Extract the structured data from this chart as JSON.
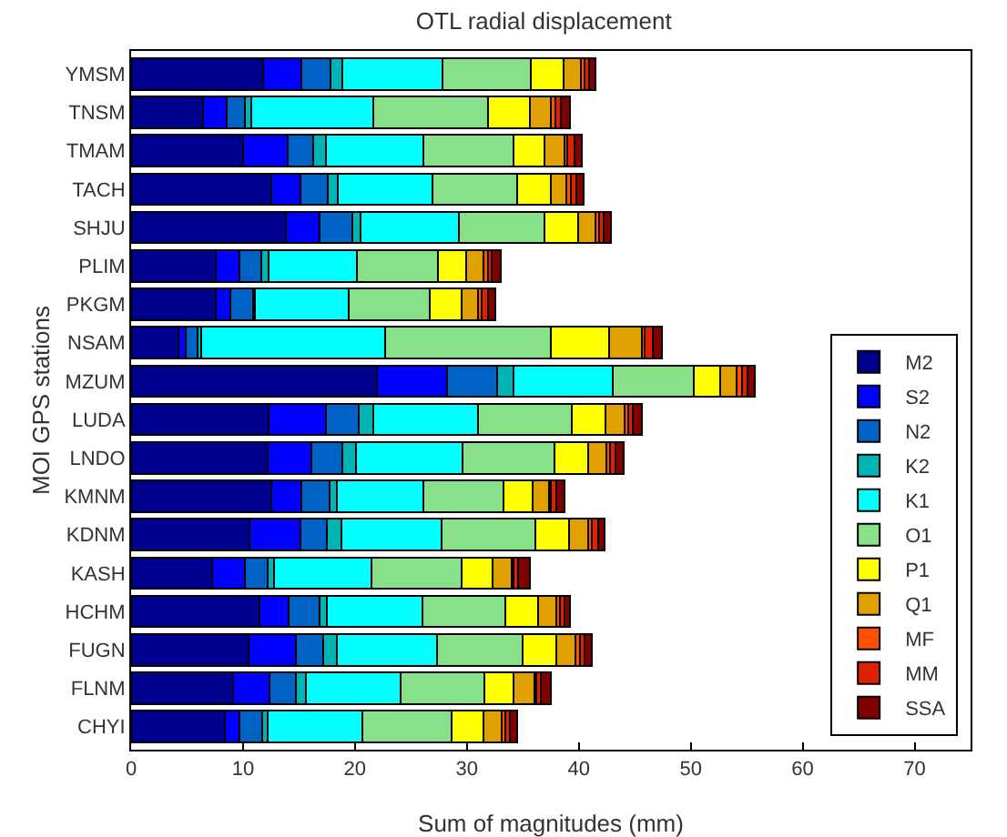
{
  "chart_data": {
    "type": "bar",
    "orientation": "horizontal",
    "stacked": true,
    "title": "OTL radial displacement",
    "xlabel": "Sum of magnitudes (mm)",
    "ylabel": "MOI GPS stations",
    "categories": [
      "YMSM",
      "TNSM",
      "TMAM",
      "TACH",
      "SHJU",
      "PLIM",
      "PKGM",
      "NSAM",
      "MZUM",
      "LUDA",
      "LNDO",
      "KMNM",
      "KDNM",
      "KASH",
      "HCHM",
      "FUGN",
      "FLNM",
      "CHYI"
    ],
    "xlim": [
      0,
      75
    ],
    "xticks": [
      0,
      10,
      20,
      30,
      40,
      50,
      60,
      70
    ],
    "grid": false,
    "legend": "bottom right",
    "series": [
      {
        "name": "M2",
        "color": "#00008f",
        "values": [
          11.8,
          6.4,
          10.0,
          12.5,
          13.8,
          7.6,
          7.6,
          4.2,
          22.0,
          12.3,
          12.2,
          12.5,
          10.6,
          7.2,
          11.5,
          10.5,
          9.1,
          8.4
        ]
      },
      {
        "name": "S2",
        "color": "#0000ff",
        "values": [
          3.4,
          2.1,
          4.0,
          2.6,
          3.0,
          2.1,
          1.3,
          0.7,
          6.2,
          5.1,
          3.9,
          2.7,
          4.5,
          3.0,
          2.6,
          4.2,
          3.3,
          1.3
        ]
      },
      {
        "name": "N2",
        "color": "#0062c4",
        "values": [
          2.6,
          1.7,
          2.3,
          2.5,
          3.0,
          1.9,
          2.0,
          1.0,
          4.5,
          2.9,
          2.8,
          2.5,
          2.4,
          2.0,
          2.7,
          2.5,
          2.3,
          2.0
        ]
      },
      {
        "name": "K2",
        "color": "#00b4b4",
        "values": [
          1.1,
          0.5,
          1.1,
          0.9,
          0.7,
          0.7,
          0.2,
          0.4,
          1.5,
          1.3,
          1.2,
          0.7,
          1.3,
          0.6,
          0.7,
          1.2,
          0.9,
          0.5
        ]
      },
      {
        "name": "K1",
        "color": "#00ffff",
        "values": [
          8.9,
          10.9,
          8.7,
          8.4,
          8.8,
          7.9,
          8.3,
          16.4,
          8.8,
          9.4,
          9.5,
          7.7,
          8.9,
          8.7,
          8.5,
          8.9,
          8.5,
          8.5
        ]
      },
      {
        "name": "O1",
        "color": "#88e088",
        "values": [
          7.9,
          10.3,
          8.1,
          7.6,
          7.6,
          7.2,
          7.3,
          14.8,
          7.3,
          8.4,
          8.2,
          7.2,
          8.4,
          8.0,
          7.4,
          7.7,
          7.5,
          7.9
        ]
      },
      {
        "name": "P1",
        "color": "#ffff00",
        "values": [
          2.9,
          3.7,
          2.7,
          3.0,
          3.0,
          2.5,
          2.8,
          5.2,
          2.3,
          3.0,
          3.0,
          2.6,
          3.0,
          2.8,
          3.0,
          3.0,
          2.6,
          2.9
        ]
      },
      {
        "name": "Q1",
        "color": "#e0a000",
        "values": [
          1.6,
          1.9,
          1.8,
          1.4,
          1.6,
          1.6,
          1.5,
          2.9,
          1.5,
          1.7,
          1.7,
          1.4,
          1.7,
          1.7,
          1.6,
          1.7,
          1.8,
          1.6
        ]
      },
      {
        "name": "MF",
        "color": "#ff5000",
        "values": [
          0.3,
          0.4,
          0.3,
          0.4,
          0.3,
          0.4,
          0.3,
          0.3,
          0.5,
          0.3,
          0.3,
          0.2,
          0.4,
          0.2,
          0.3,
          0.4,
          0.2,
          0.3
        ]
      },
      {
        "name": "MM",
        "color": "#e02000",
        "values": [
          0.4,
          0.5,
          0.6,
          0.5,
          0.4,
          0.3,
          0.6,
          0.7,
          0.5,
          0.4,
          0.5,
          0.5,
          0.5,
          0.4,
          0.4,
          0.4,
          0.4,
          0.4
        ]
      },
      {
        "name": "SSA",
        "color": "#800000",
        "values": [
          0.6,
          0.8,
          0.7,
          0.6,
          0.7,
          0.8,
          0.6,
          0.8,
          0.6,
          0.8,
          0.7,
          0.7,
          0.6,
          1.0,
          0.5,
          0.7,
          0.9,
          0.7
        ]
      }
    ]
  }
}
